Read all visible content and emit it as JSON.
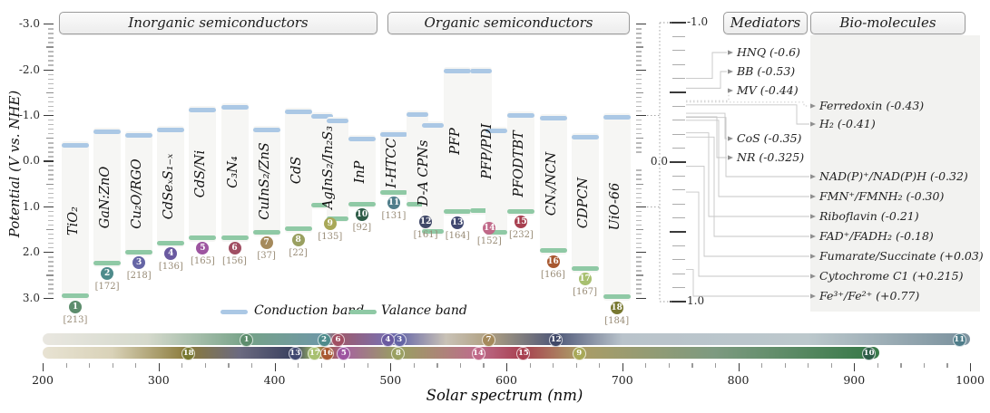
{
  "group_headers": [
    {
      "label": "Inorganic semiconductors"
    },
    {
      "label": "Organic semiconductors"
    }
  ],
  "legend": {
    "conduction_label": "Conduction band",
    "valence_label": "Valance band",
    "conduction_color": "#abc8e5",
    "valence_color": "#8fc9a5"
  },
  "right_panel": {
    "mediators_header": "Mediators",
    "bio_header": "Bio-molecules"
  },
  "chart_data": {
    "type": "band-structure-diagram",
    "potential_axis": {
      "label": "Potential (V vs. NHE)",
      "range": [
        -3.0,
        3.0
      ],
      "major_tick": 1.0,
      "minor_tick": 0.1,
      "tick_labels": [
        "-3.0",
        "-2.0",
        "-1.0",
        "0.0",
        "1.0",
        "2.0",
        "3.0"
      ]
    },
    "right_axis": {
      "range": [
        -1.0,
        1.0
      ],
      "major_tick": 0.5,
      "minor_tick": 0.1,
      "tick_labels": [
        "-1.0",
        "0.0",
        "1.0"
      ]
    },
    "materials": [
      {
        "num": 1,
        "label": "TiO₂",
        "group": "inorganic",
        "ref": "[213]",
        "color": "#5d8d6d",
        "bands": [
          {
            "cb": -0.35,
            "vb": 2.95
          }
        ],
        "abs_row": 0,
        "abs_nm": 375
      },
      {
        "num": 2,
        "label": "GaN:ZnO",
        "group": "inorganic",
        "ref": "[172]",
        "color": "#4e8b8b",
        "bands": [
          {
            "cb": -0.65,
            "vb": 2.23
          }
        ],
        "abs_row": 0,
        "abs_nm": 442
      },
      {
        "num": 3,
        "label": "Cu₂O/RGO",
        "group": "inorganic",
        "ref": "[218]",
        "color": "#6565a5",
        "bands": [
          {
            "cb": -0.57,
            "vb": 1.99
          }
        ],
        "abs_row": 0,
        "abs_nm": 507
      },
      {
        "num": 4,
        "label": "CdSeₓS₁₋ₓ",
        "group": "inorganic",
        "ref": "[136]",
        "color": "#6a5aa0",
        "bands": [
          {
            "cb": -0.69,
            "vb": 1.79
          }
        ],
        "abs_row": 0,
        "abs_nm": 497
      },
      {
        "num": 5,
        "label": "CdS/Ni",
        "group": "inorganic",
        "ref": "[165]",
        "color": "#9d55a0",
        "bands": [
          {
            "cb": -1.13,
            "vb": 1.67
          }
        ],
        "abs_row": 1,
        "abs_nm": 459
      },
      {
        "num": 6,
        "label": "C₃N₄",
        "group": "inorganic",
        "ref": "[156]",
        "color": "#a04e62",
        "bands": [
          {
            "cb": -1.18,
            "vb": 1.67
          }
        ],
        "abs_row": 0,
        "abs_nm": 454
      },
      {
        "num": 7,
        "label": "CuInS₂/ZnS",
        "group": "inorganic",
        "ref": "[37]",
        "color": "#a58a5c",
        "bands": [
          {
            "cb": -0.68,
            "vb": 1.55
          }
        ],
        "abs_row": 0,
        "abs_nm": 584
      },
      {
        "num": 8,
        "label": "CdS",
        "group": "inorganic",
        "ref": "[22]",
        "color": "#9aa061",
        "bands": [
          {
            "cb": -1.08,
            "vb": 1.48
          }
        ],
        "abs_row": 1,
        "abs_nm": 506
      },
      {
        "num": 9,
        "label": "AgInS₂/In₂S₃",
        "group": "inorganic",
        "ref": "[135]",
        "color": "#a8a858",
        "bands": [
          {
            "cb": -0.98,
            "vb": 0.97
          },
          {
            "cb": -0.88,
            "vb": 1.25
          }
        ],
        "abs_row": 1,
        "abs_nm": 662
      },
      {
        "num": 10,
        "label": "InP",
        "group": "inorganic",
        "ref": "[92]",
        "color": "#2e5d48",
        "bands": [
          {
            "cb": -0.48,
            "vb": 0.94
          }
        ],
        "abs_row": 1,
        "abs_nm": 912
      },
      {
        "num": 11,
        "label": "I-HTCC",
        "group": "organic",
        "ref": "[131]",
        "color": "#4f7d8a",
        "bands": [
          {
            "cb": -0.59,
            "vb": 0.68
          }
        ],
        "abs_row": 0,
        "abs_nm": 990
      },
      {
        "num": 12,
        "label": "D-A CPNs",
        "group": "organic",
        "ref": "[161]",
        "color": "#404868",
        "bands": [
          {
            "cb": -1.03,
            "vb": 0.94
          },
          {
            "cb": -0.78,
            "vb": 1.53
          }
        ],
        "abs_row": 0,
        "abs_nm": 642
      },
      {
        "num": 13,
        "label": "PFP",
        "group": "organic",
        "ref": "[164]",
        "color": "#404870",
        "bands": [
          {
            "cb": -1.97,
            "vb": 1.11
          }
        ],
        "abs_row": 1,
        "abs_nm": 417
      },
      {
        "num": 14,
        "label": "PFP/PDI",
        "group": "organic",
        "ref": "[152]",
        "color": "#c06888",
        "bands": [
          {
            "cb": -1.97,
            "vb": 1.08
          },
          {
            "cb": -0.67,
            "vb": 1.55
          }
        ],
        "abs_row": 1,
        "abs_nm": 575
      },
      {
        "num": 15,
        "label": "PFODTBT",
        "group": "organic",
        "ref": "[232]",
        "color": "#a84050",
        "bands": [
          {
            "cb": -1.0,
            "vb": 1.1
          }
        ],
        "abs_row": 1,
        "abs_nm": 614
      },
      {
        "num": 16,
        "label": "CNₓ/NCN",
        "group": "organic",
        "ref": "[166]",
        "color": "#a85830",
        "bands": [
          {
            "cb": -0.95,
            "vb": 1.96
          }
        ],
        "abs_row": 1,
        "abs_nm": 445
      },
      {
        "num": 17,
        "label": "CDPCN",
        "group": "organic",
        "ref": "[167]",
        "color": "#a8c070",
        "bands": [
          {
            "cb": -0.52,
            "vb": 2.35
          }
        ],
        "abs_row": 1,
        "abs_nm": 434
      },
      {
        "num": 18,
        "label": "UiO-66",
        "group": "organic",
        "ref": "[184]",
        "color": "#787830",
        "bands": [
          {
            "cb": -0.97,
            "vb": 2.97
          }
        ],
        "abs_row": 1,
        "abs_nm": 325
      }
    ],
    "mediators": [
      {
        "label": "HNQ (-0.6)",
        "potential": -0.6
      },
      {
        "label": "BB (-0.53)",
        "potential": -0.53
      },
      {
        "label": "MV (-0.44)",
        "potential": -0.44
      },
      {
        "label": "CoS (-0.35)",
        "potential": -0.35
      },
      {
        "label": "NR (-0.325)",
        "potential": -0.325
      }
    ],
    "bio_molecules": [
      {
        "label": "Ferredoxin (-0.43)",
        "potential": -0.43
      },
      {
        "label": "H₂ (-0.41)",
        "potential": -0.41
      },
      {
        "label": "NAD(P)⁺/NAD(P)H (-0.32)",
        "potential": -0.32
      },
      {
        "label": "FMN⁺/FMNH₂ (-0.30)",
        "potential": -0.3
      },
      {
        "label": "Riboflavin (-0.21)",
        "potential": -0.21
      },
      {
        "label": "FAD⁺/FADH₂ (-0.18)",
        "potential": -0.18
      },
      {
        "label": "Fumarate/Succinate (+0.03)",
        "potential": 0.03
      },
      {
        "label": "Cytochrome C1 (+0.215)",
        "potential": 0.215
      },
      {
        "label": "Fe³⁺/Fe²⁺ (+0.77)",
        "potential": 0.77
      }
    ],
    "spectrum": {
      "xlabel": "Solar spectrum (nm)",
      "axis_range": [
        200,
        1000
      ],
      "axis_ticks": [
        200,
        300,
        400,
        500,
        600,
        700,
        800,
        900,
        1000
      ],
      "minor_tick_nm": 20,
      "rows": [
        {
          "range": [
            200,
            1000
          ],
          "stops": [
            {
              "nm": 200,
              "color": "#e9e7e0"
            },
            {
              "nm": 290,
              "color": "#d5d9cc"
            },
            {
              "nm": 375,
              "color": "#76a288"
            },
            {
              "nm": 442,
              "color": "#6e97a6"
            },
            {
              "nm": 454,
              "color": "#9d5a6b"
            },
            {
              "nm": 497,
              "color": "#7a6fae"
            },
            {
              "nm": 507,
              "color": "#6868a8"
            },
            {
              "nm": 548,
              "color": "#c9c2b6"
            },
            {
              "nm": 584,
              "color": "#b0a183"
            },
            {
              "nm": 642,
              "color": "#4f5878"
            },
            {
              "nm": 700,
              "color": "#b9c3cb"
            },
            {
              "nm": 860,
              "color": "#bcc8cc"
            },
            {
              "nm": 990,
              "color": "#7e94a0"
            },
            {
              "nm": 1000,
              "color": "#7e94a0"
            }
          ]
        },
        {
          "range": [
            200,
            922
          ],
          "stops": [
            {
              "nm": 200,
              "color": "#e8e3d3"
            },
            {
              "nm": 260,
              "color": "#d9d2b8"
            },
            {
              "nm": 325,
              "color": "#8a7a3a"
            },
            {
              "nm": 370,
              "color": "#6b6a80"
            },
            {
              "nm": 417,
              "color": "#39405e"
            },
            {
              "nm": 434,
              "color": "#a0b868"
            },
            {
              "nm": 445,
              "color": "#9d5a35"
            },
            {
              "nm": 459,
              "color": "#a661a0"
            },
            {
              "nm": 506,
              "color": "#98a060"
            },
            {
              "nm": 575,
              "color": "#bd6d8c"
            },
            {
              "nm": 614,
              "color": "#a84050"
            },
            {
              "nm": 662,
              "color": "#ab9c66"
            },
            {
              "nm": 780,
              "color": "#7d9a80"
            },
            {
              "nm": 912,
              "color": "#3a7a4a"
            },
            {
              "nm": 922,
              "color": "#3a7a4a"
            }
          ]
        }
      ]
    }
  }
}
